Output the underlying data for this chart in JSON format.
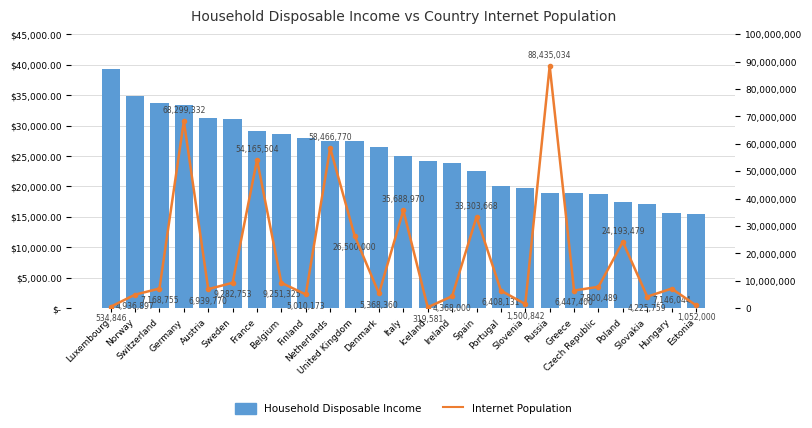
{
  "title": "Household Disposable Income vs Country Internet Population",
  "countries": [
    "Luxembourg",
    "Norway",
    "Switzerland",
    "Germany",
    "Austria",
    "Sweden",
    "France",
    "Belgium",
    "Finland",
    "Netherlands",
    "United Kingdom",
    "Denmark",
    "Italy",
    "Iceland",
    "Ireland",
    "Spain",
    "Portugal",
    "Slovenia",
    "Russia",
    "Greece",
    "Czech Republic",
    "Poland",
    "Slovakia",
    "Hungary",
    "Estonia"
  ],
  "income": [
    39300,
    34800,
    33700,
    33400,
    31200,
    31000,
    29100,
    28600,
    27900,
    27500,
    27400,
    26500,
    25000,
    24100,
    23900,
    22500,
    20100,
    19700,
    18900,
    18900,
    18700,
    17500,
    17100,
    15700,
    15500
  ],
  "population": [
    534846,
    4936897,
    7168755,
    68299332,
    6939770,
    9282753,
    54165504,
    9251325,
    5010173,
    58466770,
    26500000,
    5368360,
    35688970,
    319581,
    4368000,
    33303668,
    6408131,
    1500842,
    88435034,
    6447400,
    7800489,
    24193479,
    4225759,
    7146044,
    1052000
  ],
  "bar_color": "#5B9BD5",
  "line_color": "#ED7D31",
  "income_ylim": [
    0,
    45000
  ],
  "pop_ylim": [
    0,
    100000000
  ],
  "income_yticks": [
    0,
    5000,
    10000,
    15000,
    20000,
    25000,
    30000,
    35000,
    40000,
    45000
  ],
  "pop_yticks": [
    0,
    10000000,
    20000000,
    30000000,
    40000000,
    50000000,
    60000000,
    70000000,
    80000000,
    90000000,
    100000000
  ],
  "background_color": "#FFFFFF",
  "grid_color": "#D0D0D0",
  "title_fontsize": 10,
  "tick_fontsize": 6.5,
  "legend_fontsize": 7.5,
  "annotation_fontsize": 5.5,
  "pop_annotations": {
    "Luxembourg": "534,846",
    "Norway": "4,936,897",
    "Switzerland": "7,168,755",
    "Germany": "68,299,332",
    "Austria": "6,939,770",
    "Sweden": "9,282,753",
    "France": "54,165,504",
    "Belgium": "9,251,325",
    "Finland": "5,010,173",
    "Netherlands": "58,466,770",
    "United Kingdom": "26,500,000",
    "Denmark": "5,368,360",
    "Italy": "35,688,970",
    "Iceland": "319,581",
    "Ireland": "4,368,000",
    "Spain": "33,303,668",
    "Portugal": "6,408,131",
    "Slovenia": "1,500,842",
    "Russia": "88,435,034",
    "Greece": "6,447,400",
    "Czech Republic": "7,800,489",
    "Poland": "24,193,479",
    "Slovakia": "4,225,759",
    "Hungary": "7,146,044",
    "Estonia": "1,052,000"
  },
  "annotation_above": [
    "Germany",
    "France",
    "Netherlands",
    "Italy",
    "Spain",
    "Russia",
    "Poland"
  ],
  "annotation_below": [
    "Luxembourg",
    "Norway",
    "Switzerland",
    "Austria",
    "Sweden",
    "Belgium",
    "Finland",
    "United Kingdom",
    "Denmark",
    "Iceland",
    "Ireland",
    "Portugal",
    "Slovenia",
    "Greece",
    "Czech Republic",
    "Slovakia",
    "Hungary",
    "Estonia"
  ]
}
